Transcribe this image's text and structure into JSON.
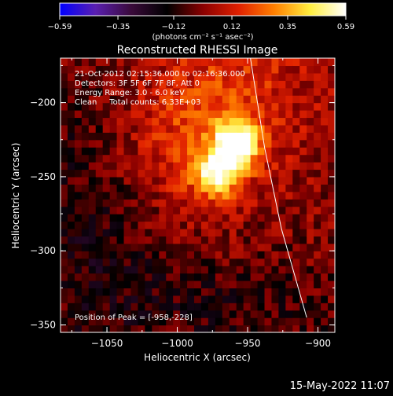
{
  "chart_data": {
    "type": "heatmap",
    "title": "Reconstructed RHESSI Image",
    "xlabel": "Heliocentric X (arcsec)",
    "ylabel": "Heliocentric Y (arcsec)",
    "xlim": [
      -1083,
      -888
    ],
    "ylim": [
      -355,
      -170
    ],
    "xticks": [
      {
        "value": -1050,
        "label": "−1050"
      },
      {
        "value": -1000,
        "label": "−1000"
      },
      {
        "value": -950,
        "label": "−950"
      },
      {
        "value": -900,
        "label": "−900"
      }
    ],
    "yticks": [
      {
        "value": -200,
        "label": "−200"
      },
      {
        "value": -250,
        "label": "−250"
      },
      {
        "value": -300,
        "label": "−300"
      },
      {
        "value": -350,
        "label": "−350"
      }
    ],
    "colorbar": {
      "min": -0.59,
      "max": 0.59,
      "ticks": [
        {
          "value": -0.59,
          "label": "−0.59"
        },
        {
          "value": -0.35,
          "label": "−0.35"
        },
        {
          "value": -0.12,
          "label": "−0.12"
        },
        {
          "value": 0.12,
          "label": "0.12"
        },
        {
          "value": 0.35,
          "label": "0.35"
        },
        {
          "value": 0.59,
          "label": "0.59"
        }
      ],
      "unit_label": "(photons cm⁻² s⁻¹ asec⁻²)",
      "colors": [
        "#0000ff",
        "#5a1fb0",
        "#3a0a3a",
        "#000000",
        "#8a0000",
        "#e02000",
        "#ff8000",
        "#ffee40",
        "#ffffff"
      ]
    },
    "sources": [
      {
        "x": -958,
        "y": -228,
        "peak": 0.59
      },
      {
        "x": -972,
        "y": -248,
        "peak": 0.48
      }
    ],
    "annotations": [
      "21-Oct-2012 02:15:36.000 to 02:16:36.000",
      "Detectors: 3F 5F 6F 7F 8F, Att 0",
      "Energy Range: 3.0 - 6.0 keV",
      "Clean     Total counts: 6.33E+03"
    ],
    "peak_label": "Position of Peak = [-958,-228]",
    "limb_curve": [
      {
        "x": -948,
        "y": -170
      },
      {
        "x": -938,
        "y": -230
      },
      {
        "x": -926,
        "y": -285
      },
      {
        "x": -908,
        "y": -345
      }
    ]
  },
  "footer": {
    "timestamp": "15-May-2022 11:07"
  }
}
